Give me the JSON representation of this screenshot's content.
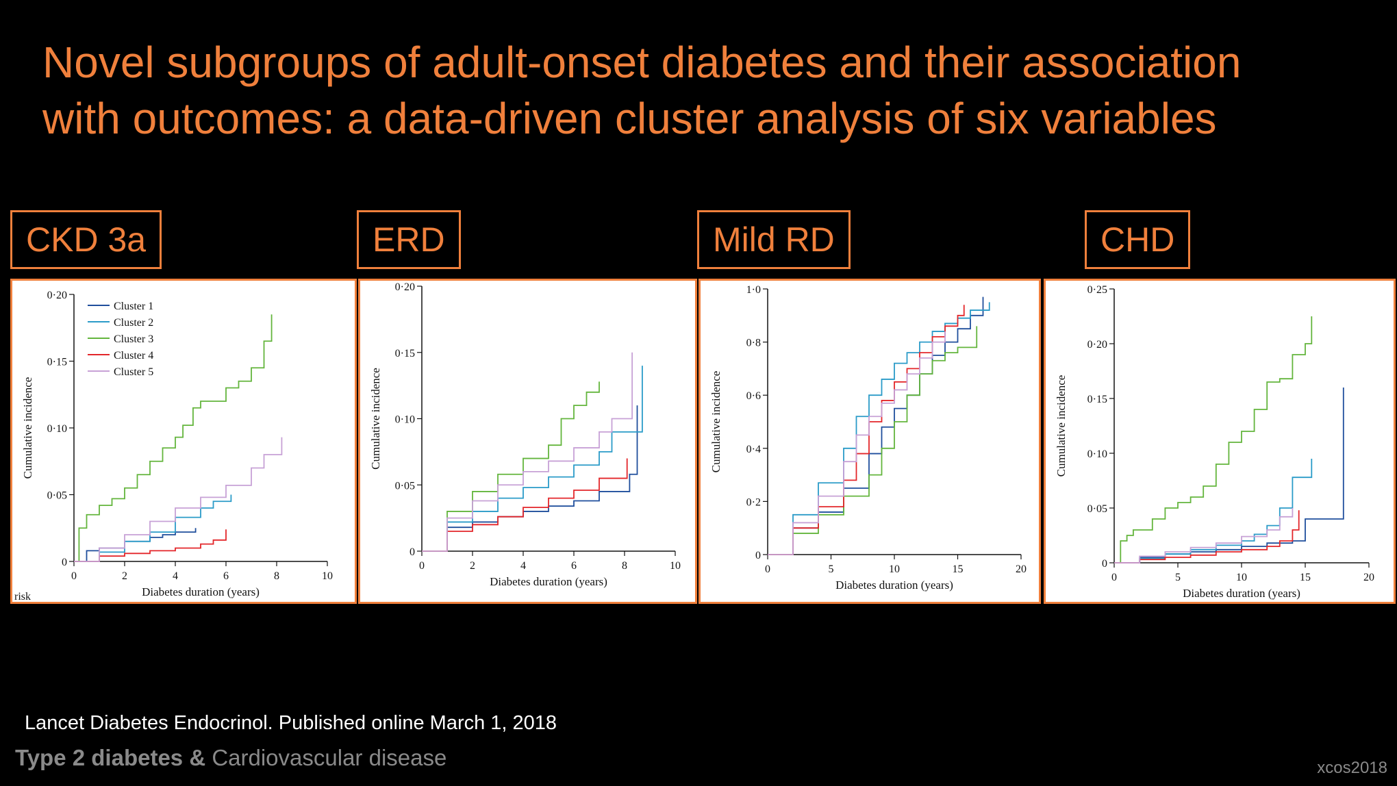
{
  "slide": {
    "title_line1": "Novel subgroups of adult-onset diabetes and their association",
    "title_line2": "with outcomes: a data-driven cluster analysis of six variables",
    "citation": "Lancet Diabetes Endocrinol. Published online March 1, 2018",
    "footer_bold": "Type 2 diabetes &",
    "footer_rest": " Cardiovascular disease",
    "brand": "xcos2018",
    "panel_tags": [
      "CKD 3a",
      "ERD",
      "Mild RD",
      "CHD"
    ]
  },
  "colors": {
    "accent": "#f0803c",
    "Cluster 1": "#1f4e9c",
    "Cluster 2": "#2a9bc8",
    "Cluster 3": "#63b53c",
    "Cluster 4": "#e3262a",
    "Cluster 5": "#c7a1d6"
  },
  "chart_data": [
    {
      "type": "line",
      "step": true,
      "title": "CKD 3a",
      "xlabel": "Diabetes duration (years)",
      "ylabel": "Cumulative incidence",
      "xlim": [
        0,
        10
      ],
      "ylim": [
        0,
        0.2
      ],
      "xticks": [
        0,
        2,
        4,
        6,
        8,
        10
      ],
      "yticks": [
        0,
        0.05,
        0.1,
        0.15,
        0.2
      ],
      "ytick_labels": [
        "0",
        "0·05",
        "0·10",
        "0·15",
        "0·20"
      ],
      "legend": "top-left",
      "corner_text": "risk",
      "series": [
        {
          "name": "Cluster 1",
          "x": [
            0,
            0.5,
            1,
            2,
            3,
            3.5,
            4,
            4.8
          ],
          "y": [
            0,
            0.008,
            0.01,
            0.015,
            0.018,
            0.02,
            0.022,
            0.025
          ]
        },
        {
          "name": "Cluster 2",
          "x": [
            0,
            1,
            2,
            3,
            4,
            5,
            5.5,
            6.2
          ],
          "y": [
            0,
            0.007,
            0.015,
            0.022,
            0.033,
            0.04,
            0.045,
            0.05
          ]
        },
        {
          "name": "Cluster 3",
          "x": [
            0,
            0.2,
            0.5,
            1,
            1.5,
            2,
            2.5,
            3,
            3.5,
            4,
            4.3,
            4.7,
            5,
            6,
            6.5,
            7,
            7.5,
            7.8
          ],
          "y": [
            0,
            0.025,
            0.035,
            0.042,
            0.047,
            0.055,
            0.065,
            0.075,
            0.085,
            0.093,
            0.102,
            0.115,
            0.12,
            0.13,
            0.135,
            0.145,
            0.165,
            0.185
          ]
        },
        {
          "name": "Cluster 4",
          "x": [
            0,
            1,
            2,
            3,
            4,
            5,
            5.5,
            6
          ],
          "y": [
            0,
            0.004,
            0.006,
            0.008,
            0.01,
            0.013,
            0.016,
            0.024
          ]
        },
        {
          "name": "Cluster 5",
          "x": [
            0,
            1,
            2,
            3,
            4,
            5,
            6,
            7,
            7.5,
            8.2
          ],
          "y": [
            0,
            0.01,
            0.02,
            0.03,
            0.04,
            0.048,
            0.057,
            0.07,
            0.08,
            0.093
          ]
        }
      ]
    },
    {
      "type": "line",
      "step": true,
      "title": "ERD",
      "xlabel": "Diabetes duration (years)",
      "ylabel": "Cumulative incidence",
      "xlim": [
        0,
        10
      ],
      "ylim": [
        0,
        0.2
      ],
      "xticks": [
        0,
        2,
        4,
        6,
        8,
        10
      ],
      "yticks": [
        0,
        0.05,
        0.1,
        0.15,
        0.2
      ],
      "ytick_labels": [
        "0",
        "0·05",
        "0·10",
        "0·15",
        "0·20"
      ],
      "series": [
        {
          "name": "Cluster 1",
          "x": [
            0,
            1,
            2,
            3,
            4,
            5,
            6,
            7,
            8.2,
            8.5
          ],
          "y": [
            0,
            0.018,
            0.022,
            0.026,
            0.03,
            0.034,
            0.038,
            0.045,
            0.058,
            0.11
          ]
        },
        {
          "name": "Cluster 2",
          "x": [
            0,
            1,
            2,
            3,
            4,
            5,
            6,
            7,
            7.5,
            8.7
          ],
          "y": [
            0,
            0.022,
            0.03,
            0.04,
            0.048,
            0.056,
            0.065,
            0.075,
            0.09,
            0.14
          ]
        },
        {
          "name": "Cluster 3",
          "x": [
            0,
            1,
            2,
            3,
            4,
            5,
            5.5,
            6,
            6.5,
            7
          ],
          "y": [
            0,
            0.03,
            0.045,
            0.058,
            0.07,
            0.08,
            0.1,
            0.11,
            0.12,
            0.128
          ]
        },
        {
          "name": "Cluster 4",
          "x": [
            0,
            1,
            2,
            3,
            4,
            5,
            6,
            7,
            8.1
          ],
          "y": [
            0,
            0.015,
            0.02,
            0.026,
            0.033,
            0.04,
            0.046,
            0.055,
            0.07
          ]
        },
        {
          "name": "Cluster 5",
          "x": [
            0,
            1,
            2,
            3,
            4,
            5,
            6,
            7,
            7.5,
            8.3
          ],
          "y": [
            0,
            0.025,
            0.038,
            0.05,
            0.06,
            0.068,
            0.078,
            0.09,
            0.1,
            0.15
          ]
        }
      ]
    },
    {
      "type": "line",
      "step": true,
      "title": "Mild RD",
      "xlabel": "Diabetes duration (years)",
      "ylabel": "Cumulative incidence",
      "xlim": [
        0,
        20
      ],
      "ylim": [
        0,
        1.0
      ],
      "xticks": [
        0,
        5,
        10,
        15,
        20
      ],
      "yticks": [
        0,
        0.2,
        0.4,
        0.6,
        0.8,
        1.0
      ],
      "ytick_labels": [
        "0",
        "0·2",
        "0·4",
        "0·6",
        "0·8",
        "1·0"
      ],
      "series": [
        {
          "name": "Cluster 1",
          "x": [
            0,
            2,
            4,
            6,
            8,
            9,
            10,
            11,
            12,
            13,
            14,
            15,
            16,
            17
          ],
          "y": [
            0,
            0.1,
            0.16,
            0.25,
            0.38,
            0.48,
            0.55,
            0.6,
            0.68,
            0.75,
            0.8,
            0.85,
            0.9,
            0.97
          ]
        },
        {
          "name": "Cluster 2",
          "x": [
            0,
            2,
            4,
            6,
            7,
            8,
            9,
            10,
            11,
            12,
            13,
            14,
            15,
            16,
            17.5
          ],
          "y": [
            0,
            0.15,
            0.27,
            0.4,
            0.52,
            0.6,
            0.66,
            0.72,
            0.76,
            0.8,
            0.84,
            0.87,
            0.89,
            0.92,
            0.95
          ]
        },
        {
          "name": "Cluster 3",
          "x": [
            0,
            2,
            4,
            6,
            8,
            9,
            10,
            11,
            12,
            13,
            14,
            15,
            16.5
          ],
          "y": [
            0,
            0.08,
            0.15,
            0.22,
            0.3,
            0.4,
            0.5,
            0.6,
            0.68,
            0.73,
            0.76,
            0.78,
            0.86
          ]
        },
        {
          "name": "Cluster 4",
          "x": [
            0,
            2,
            4,
            6,
            7,
            8,
            9,
            10,
            11,
            12,
            13,
            14,
            15,
            15.5
          ],
          "y": [
            0,
            0.1,
            0.18,
            0.28,
            0.38,
            0.5,
            0.58,
            0.65,
            0.7,
            0.76,
            0.82,
            0.86,
            0.9,
            0.94
          ]
        },
        {
          "name": "Cluster 5",
          "x": [
            0,
            2,
            4,
            6,
            7,
            8,
            9,
            10,
            11,
            12,
            13,
            14
          ],
          "y": [
            0,
            0.12,
            0.22,
            0.35,
            0.45,
            0.52,
            0.57,
            0.62,
            0.68,
            0.74,
            0.8,
            0.84
          ]
        }
      ]
    },
    {
      "type": "line",
      "step": true,
      "title": "CHD",
      "xlabel": "Diabetes duration (years)",
      "ylabel": "Cumulative incidence",
      "xlim": [
        0,
        20
      ],
      "ylim": [
        0,
        0.25
      ],
      "xticks": [
        0,
        5,
        10,
        15,
        20
      ],
      "yticks": [
        0,
        0.05,
        0.1,
        0.15,
        0.2,
        0.25
      ],
      "ytick_labels": [
        "0",
        "0·05",
        "0·10",
        "0·15",
        "0·20",
        "0·25"
      ],
      "series": [
        {
          "name": "Cluster 1",
          "x": [
            0,
            2,
            4,
            6,
            8,
            10,
            12,
            14,
            15,
            16,
            18
          ],
          "y": [
            0,
            0.005,
            0.008,
            0.01,
            0.012,
            0.015,
            0.018,
            0.02,
            0.04,
            0.04,
            0.16
          ]
        },
        {
          "name": "Cluster 2",
          "x": [
            0,
            2,
            4,
            6,
            8,
            10,
            11,
            12,
            13,
            14,
            15.5
          ],
          "y": [
            0,
            0.004,
            0.008,
            0.012,
            0.016,
            0.02,
            0.026,
            0.034,
            0.05,
            0.078,
            0.095
          ]
        },
        {
          "name": "Cluster 3",
          "x": [
            0,
            0.5,
            1,
            1.5,
            2,
            3,
            4,
            5,
            6,
            7,
            8,
            9,
            10,
            11,
            12,
            13,
            14,
            15,
            15.5
          ],
          "y": [
            0,
            0.02,
            0.025,
            0.03,
            0.03,
            0.04,
            0.05,
            0.055,
            0.06,
            0.07,
            0.09,
            0.11,
            0.12,
            0.14,
            0.165,
            0.168,
            0.19,
            0.2,
            0.225
          ]
        },
        {
          "name": "Cluster 4",
          "x": [
            0,
            2,
            4,
            6,
            8,
            10,
            12,
            13,
            14,
            14.5
          ],
          "y": [
            0,
            0.003,
            0.005,
            0.007,
            0.01,
            0.012,
            0.015,
            0.02,
            0.03,
            0.048
          ]
        },
        {
          "name": "Cluster 5",
          "x": [
            0,
            2,
            4,
            6,
            8,
            10,
            12,
            13,
            14
          ],
          "y": [
            0,
            0.006,
            0.01,
            0.014,
            0.018,
            0.024,
            0.03,
            0.042,
            0.05
          ]
        }
      ]
    }
  ]
}
